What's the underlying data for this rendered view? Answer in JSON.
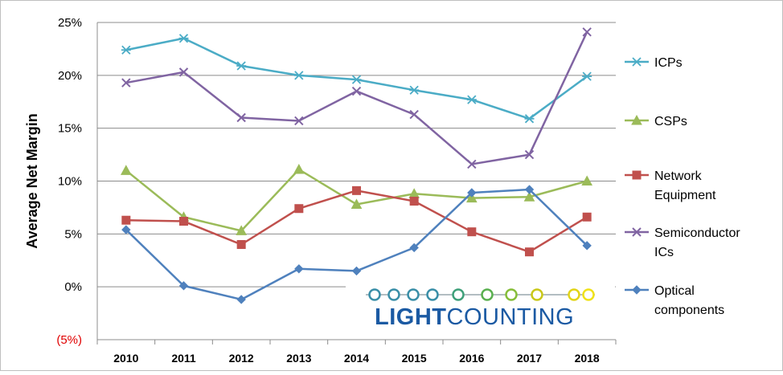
{
  "chart_data": {
    "type": "line",
    "ylabel": "Average  Net  Margin",
    "xlabel": "",
    "categories": [
      "2010",
      "2011",
      "2012",
      "2013",
      "2014",
      "2015",
      "2016",
      "2017",
      "2018"
    ],
    "ylim": [
      -5,
      25
    ],
    "yticks": [
      {
        "value": 25,
        "label": "25%"
      },
      {
        "value": 20,
        "label": "20%"
      },
      {
        "value": 15,
        "label": "15%"
      },
      {
        "value": 10,
        "label": "10%"
      },
      {
        "value": 5,
        "label": "5%"
      },
      {
        "value": 0,
        "label": "0%"
      },
      {
        "value": -5,
        "label": "(5%)"
      }
    ],
    "grid": true,
    "legend_position": "right",
    "series": [
      {
        "name": "ICPs",
        "legend_lines": [
          "ICPs"
        ],
        "color": "#4bacc6",
        "marker": "star",
        "values": [
          22.4,
          23.5,
          20.9,
          20.0,
          19.6,
          18.6,
          17.7,
          15.9,
          19.9
        ]
      },
      {
        "name": "CSPs",
        "legend_lines": [
          "CSPs"
        ],
        "color": "#9bbb59",
        "marker": "triangle",
        "values": [
          11.0,
          6.6,
          5.3,
          11.1,
          7.8,
          8.8,
          8.4,
          8.5,
          10.0
        ]
      },
      {
        "name": "Network Equipment",
        "legend_lines": [
          "Network",
          "Equipment"
        ],
        "color": "#c0504d",
        "marker": "square",
        "values": [
          6.3,
          6.2,
          4.0,
          7.4,
          9.1,
          8.1,
          5.2,
          3.3,
          6.6
        ]
      },
      {
        "name": "Semiconductor ICs",
        "legend_lines": [
          "Semiconductor",
          "ICs"
        ],
        "color": "#8064a2",
        "marker": "x",
        "values": [
          19.3,
          20.3,
          16.0,
          15.7,
          18.5,
          16.3,
          11.6,
          12.5,
          24.1
        ]
      },
      {
        "name": "Optical components",
        "legend_lines": [
          "Optical",
          "components"
        ],
        "color": "#4f81bd",
        "marker": "diamond",
        "values": [
          5.4,
          0.1,
          -1.2,
          1.7,
          1.5,
          3.7,
          8.9,
          9.2,
          3.9
        ]
      }
    ]
  },
  "logo": {
    "text_bold": "LIGHT",
    "text_light": "COUNTING"
  }
}
